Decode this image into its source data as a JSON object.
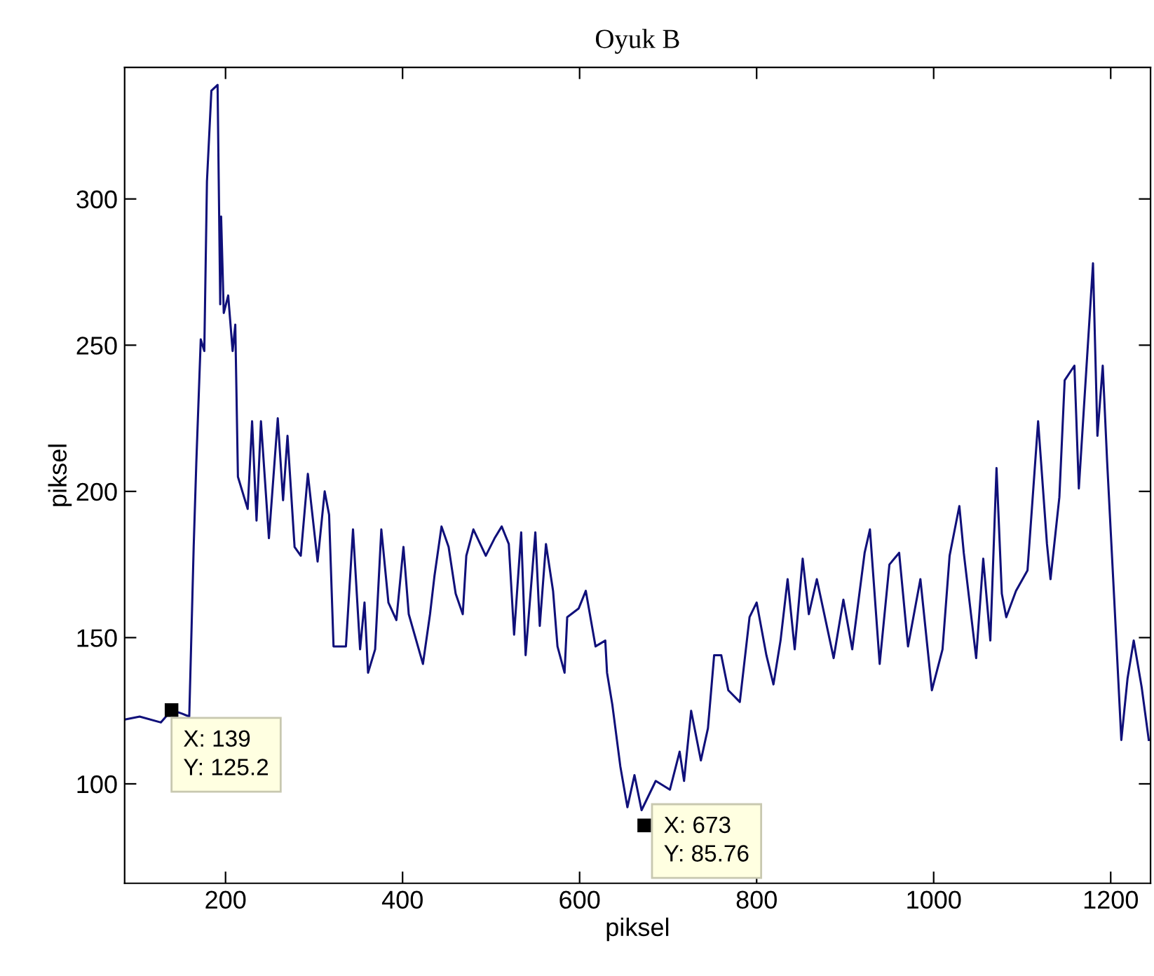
{
  "chart_data": {
    "type": "line",
    "title": "Oyuk B",
    "xlabel": "piksel",
    "ylabel": "piksel",
    "xlim": [
      86,
      1245
    ],
    "ylim": [
      66,
      345
    ],
    "xticks": [
      200,
      400,
      600,
      800,
      1000,
      1200
    ],
    "yticks": [
      100,
      150,
      200,
      250,
      300
    ],
    "grid": false,
    "legend": false,
    "series": [
      {
        "color": "#10107a",
        "x": [
          86,
          103,
          127,
          139,
          151,
          159,
          161,
          164,
          167,
          172,
          176,
          179,
          184,
          191,
          194,
          195,
          198,
          203,
          208,
          211,
          214,
          225,
          230,
          235,
          240,
          249,
          259,
          265,
          270,
          278,
          285,
          293,
          304,
          312,
          317,
          322,
          336,
          344,
          352,
          357,
          361,
          369,
          376,
          384,
          393,
          401,
          407,
          423,
          431,
          436,
          444,
          452,
          460,
          468,
          472,
          480,
          494,
          504,
          512,
          520,
          526,
          534,
          539,
          550,
          555,
          562,
          570,
          575,
          583,
          586,
          599,
          607,
          618,
          629,
          631,
          637,
          646,
          654,
          662,
          670,
          686,
          702,
          713,
          718,
          726,
          737,
          745,
          752,
          760,
          768,
          781,
          792,
          800,
          811,
          819,
          827,
          835,
          843,
          852,
          859,
          868,
          887,
          898,
          908,
          922,
          928,
          939,
          950,
          961,
          971,
          985,
          998,
          1010,
          1018,
          1029,
          1034,
          1048,
          1056,
          1064,
          1071,
          1077,
          1082,
          1093,
          1106,
          1118,
          1128,
          1132,
          1142,
          1148,
          1159,
          1164,
          1180,
          1185,
          1191,
          1196,
          1204,
          1212,
          1219,
          1226,
          1235,
          1243
        ],
        "values": [
          122,
          123,
          121,
          125.2,
          124,
          123,
          146,
          181,
          210,
          252,
          248,
          306,
          337,
          339,
          264,
          294,
          261,
          267,
          248,
          257,
          205,
          194,
          224,
          190,
          224,
          184,
          225,
          197,
          219,
          181,
          178,
          206,
          176,
          200,
          192,
          147,
          147,
          187,
          146,
          162,
          138,
          146,
          187,
          162,
          156,
          181,
          158,
          141,
          158,
          171,
          188,
          181,
          165,
          158,
          178,
          187,
          178,
          184,
          188,
          182,
          151,
          186,
          144,
          186,
          154,
          182,
          166,
          147,
          138,
          157,
          160,
          166,
          147,
          149,
          138,
          127,
          106,
          92,
          103,
          91,
          101,
          98,
          111,
          101,
          125,
          108,
          119,
          144,
          144,
          132,
          128,
          157,
          162,
          144,
          134,
          149,
          170,
          146,
          177,
          158,
          170,
          143,
          163,
          146,
          179,
          187,
          141,
          175,
          179,
          147,
          170,
          132,
          146,
          178,
          195,
          179,
          143,
          177,
          149,
          208,
          165,
          157,
          166,
          173,
          224,
          182,
          170,
          198,
          238,
          243,
          201,
          278,
          219,
          243,
          210,
          163,
          115,
          136,
          149,
          133,
          115
        ]
      }
    ],
    "annotations": [
      {
        "text": "X: 139\nY: 125.2",
        "x": 139,
        "y": 125.2
      },
      {
        "text": "X: 673\nY: 85.76",
        "x": 673,
        "y": 85.76
      }
    ]
  }
}
